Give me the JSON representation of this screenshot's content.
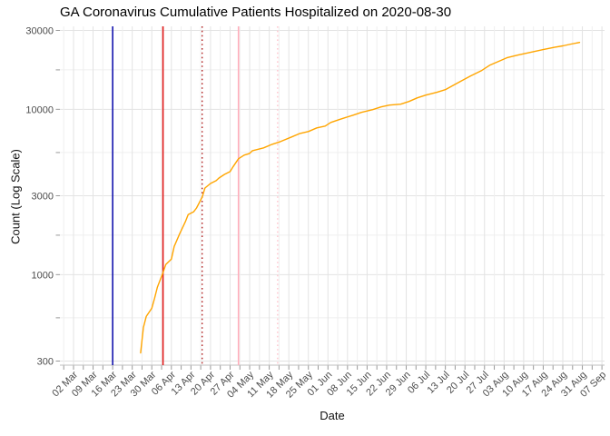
{
  "title": "GA Coronavirus Cumulative Patients Hospitalized on 2020-08-30",
  "x_axis_title": "Date",
  "y_axis_title": "Count (Log Scale)",
  "chart_data": {
    "type": "line",
    "title": "GA Coronavirus Cumulative Patients Hospitalized on 2020-08-30",
    "xlabel": "Date",
    "ylabel": "Count (Log Scale)",
    "y_scale": "log10",
    "ylim": [
      285,
      31500
    ],
    "xlim": [
      "2020-02-26",
      "2020-09-08"
    ],
    "grid": "major+minor",
    "legend": "none",
    "colors": {
      "axis_text": "#4D4D4D",
      "grid_major": "#E3E3E3",
      "grid_minor": "#EFEFEF",
      "axis_line": "#BFBFBF",
      "tick": "#999999"
    },
    "x_ticks": [
      {
        "date": "2020-03-02",
        "label": "02 Mar"
      },
      {
        "date": "2020-03-09",
        "label": "09 Mar"
      },
      {
        "date": "2020-03-16",
        "label": "16 Mar"
      },
      {
        "date": "2020-03-23",
        "label": "23 Mar"
      },
      {
        "date": "2020-03-30",
        "label": "30 Mar"
      },
      {
        "date": "2020-04-06",
        "label": "06 Apr"
      },
      {
        "date": "2020-04-13",
        "label": "13 Apr"
      },
      {
        "date": "2020-04-20",
        "label": "20 Apr"
      },
      {
        "date": "2020-04-27",
        "label": "27 Apr"
      },
      {
        "date": "2020-05-04",
        "label": "04 May"
      },
      {
        "date": "2020-05-11",
        "label": "11 May"
      },
      {
        "date": "2020-05-18",
        "label": "18 May"
      },
      {
        "date": "2020-05-25",
        "label": "25 May"
      },
      {
        "date": "2020-06-01",
        "label": "01 Jun"
      },
      {
        "date": "2020-06-08",
        "label": "08 Jun"
      },
      {
        "date": "2020-06-15",
        "label": "15 Jun"
      },
      {
        "date": "2020-06-22",
        "label": "22 Jun"
      },
      {
        "date": "2020-06-29",
        "label": "29 Jun"
      },
      {
        "date": "2020-07-06",
        "label": "06 Jul"
      },
      {
        "date": "2020-07-13",
        "label": "13 Jul"
      },
      {
        "date": "2020-07-20",
        "label": "20 Jul"
      },
      {
        "date": "2020-07-27",
        "label": "27 Jul"
      },
      {
        "date": "2020-08-03",
        "label": "03 Aug"
      },
      {
        "date": "2020-08-10",
        "label": "10 Aug"
      },
      {
        "date": "2020-08-17",
        "label": "17 Aug"
      },
      {
        "date": "2020-08-24",
        "label": "24 Aug"
      },
      {
        "date": "2020-08-31",
        "label": "31 Aug"
      },
      {
        "date": "2020-09-07",
        "label": "07 Sep"
      }
    ],
    "y_ticks": [
      {
        "value": 30000,
        "label": "30000"
      },
      {
        "value": 10000,
        "label": "10000"
      },
      {
        "value": 3000,
        "label": "3000"
      },
      {
        "value": 1000,
        "label": "1000"
      },
      {
        "value": 300,
        "label": "300"
      }
    ],
    "y_minor_gridlines": [
      17321,
      5477,
      1732,
      548
    ],
    "vlines": [
      {
        "date": "2020-03-16",
        "color": "#1414AE",
        "style": "solid"
      },
      {
        "date": "2020-04-03",
        "color": "#E01818",
        "style": "solid"
      },
      {
        "date": "2020-04-17",
        "color": "#B22222",
        "style": "dotted"
      },
      {
        "date": "2020-04-30",
        "color": "#FFAEBB",
        "style": "solid"
      },
      {
        "date": "2020-05-14",
        "color": "#FFC4CE",
        "style": "dotted"
      }
    ],
    "series": [
      {
        "name": "Cumulative Patients Hospitalized",
        "color": "#FFA500",
        "points": [
          [
            "2020-03-26",
            336
          ],
          [
            "2020-03-27",
            480
          ],
          [
            "2020-03-28",
            558
          ],
          [
            "2020-03-30",
            626
          ],
          [
            "2020-03-31",
            720
          ],
          [
            "2020-04-01",
            840
          ],
          [
            "2020-04-03",
            1030
          ],
          [
            "2020-04-04",
            1150
          ],
          [
            "2020-04-06",
            1240
          ],
          [
            "2020-04-07",
            1480
          ],
          [
            "2020-04-09",
            1770
          ],
          [
            "2020-04-11",
            2090
          ],
          [
            "2020-04-12",
            2310
          ],
          [
            "2020-04-14",
            2400
          ],
          [
            "2020-04-15",
            2530
          ],
          [
            "2020-04-17",
            2940
          ],
          [
            "2020-04-18",
            3340
          ],
          [
            "2020-04-20",
            3560
          ],
          [
            "2020-04-22",
            3700
          ],
          [
            "2020-04-23",
            3840
          ],
          [
            "2020-04-25",
            4040
          ],
          [
            "2020-04-27",
            4200
          ],
          [
            "2020-04-28",
            4480
          ],
          [
            "2020-04-30",
            5020
          ],
          [
            "2020-05-02",
            5280
          ],
          [
            "2020-05-04",
            5410
          ],
          [
            "2020-05-05",
            5620
          ],
          [
            "2020-05-09",
            5840
          ],
          [
            "2020-05-12",
            6140
          ],
          [
            "2020-05-15",
            6380
          ],
          [
            "2020-05-19",
            6800
          ],
          [
            "2020-05-22",
            7150
          ],
          [
            "2020-05-25",
            7340
          ],
          [
            "2020-05-28",
            7720
          ],
          [
            "2020-05-31",
            7920
          ],
          [
            "2020-06-02",
            8330
          ],
          [
            "2020-06-05",
            8660
          ],
          [
            "2020-06-07",
            8880
          ],
          [
            "2020-06-10",
            9220
          ],
          [
            "2020-06-13",
            9580
          ],
          [
            "2020-06-17",
            9950
          ],
          [
            "2020-06-20",
            10340
          ],
          [
            "2020-06-23",
            10600
          ],
          [
            "2020-06-27",
            10740
          ],
          [
            "2020-06-30",
            11150
          ],
          [
            "2020-07-03",
            11740
          ],
          [
            "2020-07-06",
            12190
          ],
          [
            "2020-07-10",
            12670
          ],
          [
            "2020-07-13",
            13150
          ],
          [
            "2020-07-16",
            14020
          ],
          [
            "2020-07-19",
            14940
          ],
          [
            "2020-07-22",
            15920
          ],
          [
            "2020-07-26",
            17170
          ],
          [
            "2020-07-29",
            18520
          ],
          [
            "2020-08-01",
            19490
          ],
          [
            "2020-08-04",
            20510
          ],
          [
            "2020-08-08",
            21300
          ],
          [
            "2020-08-11",
            21850
          ],
          [
            "2020-08-14",
            22410
          ],
          [
            "2020-08-17",
            22980
          ],
          [
            "2020-08-21",
            23720
          ],
          [
            "2020-08-24",
            24180
          ],
          [
            "2020-08-27",
            24800
          ],
          [
            "2020-08-30",
            25400
          ]
        ]
      }
    ]
  }
}
